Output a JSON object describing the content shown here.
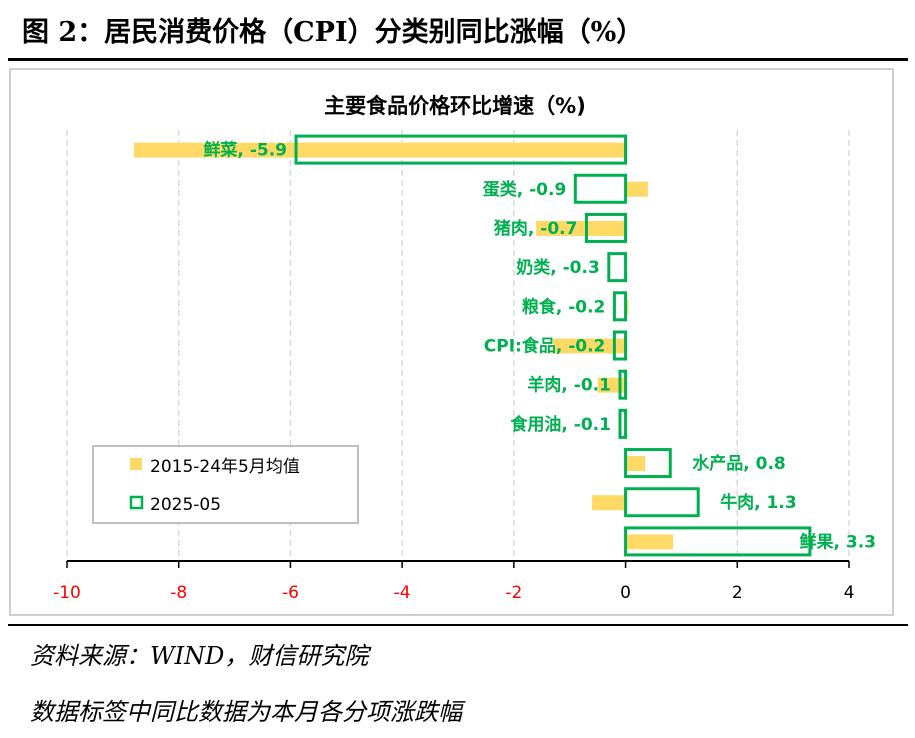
{
  "header": {
    "title": "图 2：居民消费价格（CPI）分类别同比涨幅（%）"
  },
  "footer": {
    "source": "资料来源：WIND，财信研究院",
    "note": "数据标签中同比数据为本月各分项涨跌幅"
  },
  "colors": {
    "average_fill": "#FFD966",
    "current_outline": "#00B050",
    "label_text": "#00B050",
    "tick_text": "#FF0000"
  },
  "chart_data": {
    "type": "bar",
    "orientation": "horizontal",
    "title": "主要食品价格环比增速（%)",
    "categories": [
      "鲜菜",
      "蛋类",
      "猪肉",
      "奶类",
      "粮食",
      "CPI:食品",
      "羊肉",
      "食用油",
      "水产品",
      "牛肉",
      "鲜果"
    ],
    "series": [
      {
        "name": "2015-24年5月均值",
        "style": "filled",
        "values": [
          -8.8,
          0.4,
          -1.6,
          0.0,
          0.05,
          -1.3,
          -0.5,
          0.0,
          0.35,
          -0.6,
          0.85
        ]
      },
      {
        "name": "2025-05",
        "style": "outline",
        "values": [
          -5.9,
          -0.9,
          -0.7,
          -0.3,
          -0.2,
          -0.2,
          -0.1,
          -0.1,
          0.8,
          1.3,
          3.3
        ]
      }
    ],
    "data_labels": [
      "鲜菜, -5.9",
      "蛋类, -0.9",
      "猪肉, -0.7",
      "奶类, -0.3",
      "粮食, -0.2",
      "CPI:食品, -0.2",
      "羊肉, -0.1",
      "食用油, -0.1",
      "水产品, 0.8",
      "牛肉, 1.3",
      "鲜果, 3.3"
    ],
    "xlim": [
      -10,
      4
    ],
    "xticks": [
      "-10",
      "-8",
      "-6",
      "-4",
      "-2",
      "0",
      "2",
      "4"
    ],
    "grid": true,
    "legend": "bottom-left"
  }
}
